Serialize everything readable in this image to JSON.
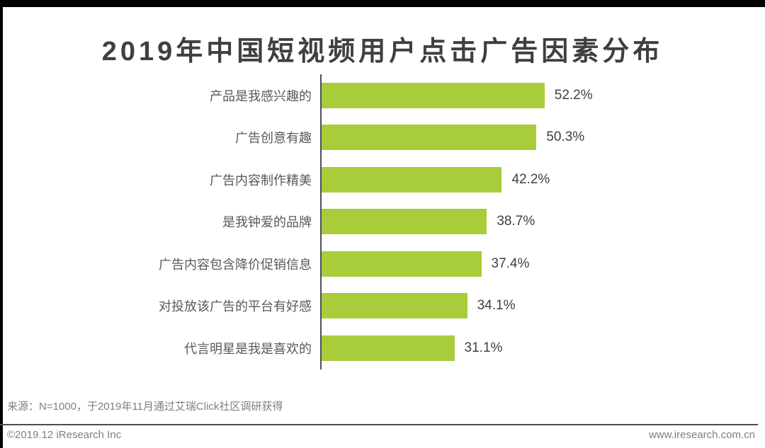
{
  "title": "2019年中国短视频用户点击广告因素分布",
  "chart_data": {
    "type": "bar",
    "orientation": "horizontal",
    "title": "2019年中国短视频用户点击广告因素分布",
    "categories": [
      "产品是我感兴趣的",
      "广告创意有趣",
      "广告内容制作精美",
      "是我钟爱的品牌",
      "广告内容包含降价促销信息",
      "对投放该广告的平台有好感",
      "代言明星是我是喜欢的"
    ],
    "values": [
      52.2,
      50.3,
      42.2,
      38.7,
      37.4,
      34.1,
      31.1
    ],
    "value_labels": [
      "52.2%",
      "50.3%",
      "42.2%",
      "38.7%",
      "37.4%",
      "34.1%",
      "31.1%"
    ],
    "xlabel": "",
    "ylabel": "",
    "xlim": [
      0,
      60
    ],
    "grid": false,
    "legend": "none",
    "bar_color": "#a8cc3a",
    "axis_line_color": "#50505a",
    "value_label_position": "right-of-bar"
  },
  "source_note": "来源：N=1000，于2019年11月通过艾瑞Click社区调研获得",
  "footer": {
    "copyright": "©2019.12 iResearch Inc",
    "website": "www.iresearch.com.cn"
  },
  "colors": {
    "bar": "#a8cc3a",
    "title_text": "#3f3f3f",
    "category_text": "#595959",
    "value_text": "#404040",
    "muted_text": "#7f7f7f",
    "separator": "#4d4d4d",
    "border_band": "#000000"
  }
}
